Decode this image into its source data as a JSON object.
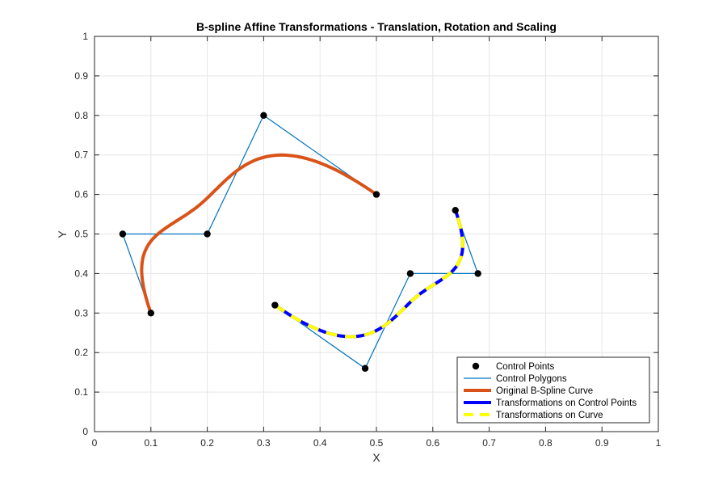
{
  "chart_data": {
    "type": "line",
    "title": "B-spline Affine Transformations - Translation, Rotation and Scaling",
    "xlabel": "X",
    "ylabel": "Y",
    "xlim": [
      0,
      1
    ],
    "ylim": [
      0,
      1
    ],
    "x_ticks": [
      "0",
      "0.1",
      "0.2",
      "0.3",
      "0.4",
      "0.5",
      "0.6",
      "0.7",
      "0.8",
      "0.9",
      "1"
    ],
    "y_ticks": [
      "0",
      "0.1",
      "0.2",
      "0.3",
      "0.4",
      "0.5",
      "0.6",
      "0.7",
      "0.8",
      "0.9",
      "1"
    ],
    "grid": true,
    "legend_position": "bottom-right",
    "legend": [
      {
        "label": "Control Points",
        "style": "marker",
        "color": "#000000"
      },
      {
        "label": "Control Polygons",
        "style": "thin-line",
        "color": "#0072BD"
      },
      {
        "label": "Original B-Spline Curve",
        "style": "thick-line",
        "color": "#D95319"
      },
      {
        "label": "Transformations on Control Points",
        "style": "thick-line",
        "color": "#0000FF"
      },
      {
        "label": "Transformations on Curve",
        "style": "thick-dashed-line",
        "color": "#FFFF00"
      }
    ],
    "series": [
      {
        "name": "Control Points",
        "kind": "points",
        "color": "#000000",
        "points": [
          [
            0.1,
            0.3
          ],
          [
            0.05,
            0.5
          ],
          [
            0.2,
            0.5
          ],
          [
            0.3,
            0.8
          ],
          [
            0.5,
            0.6
          ],
          [
            0.32,
            0.32
          ],
          [
            0.48,
            0.16
          ],
          [
            0.56,
            0.4
          ],
          [
            0.68,
            0.4
          ],
          [
            0.64,
            0.56
          ]
        ]
      },
      {
        "name": "Control Polygons",
        "kind": "polylines",
        "color": "#0072BD",
        "lines": [
          [
            [
              0.1,
              0.3
            ],
            [
              0.05,
              0.5
            ],
            [
              0.2,
              0.5
            ],
            [
              0.3,
              0.8
            ],
            [
              0.5,
              0.6
            ]
          ],
          [
            [
              0.32,
              0.32
            ],
            [
              0.48,
              0.16
            ],
            [
              0.56,
              0.4
            ],
            [
              0.68,
              0.4
            ],
            [
              0.64,
              0.56
            ]
          ]
        ]
      },
      {
        "name": "Original B-Spline Curve",
        "kind": "bspline",
        "color": "#D95319",
        "control": [
          [
            0.1,
            0.3
          ],
          [
            0.05,
            0.5
          ],
          [
            0.2,
            0.5
          ],
          [
            0.3,
            0.8
          ],
          [
            0.5,
            0.6
          ]
        ]
      },
      {
        "name": "Transformations on Control Points",
        "kind": "bspline",
        "color": "#0000FF",
        "control": [
          [
            0.32,
            0.32
          ],
          [
            0.48,
            0.16
          ],
          [
            0.56,
            0.4
          ],
          [
            0.68,
            0.4
          ],
          [
            0.64,
            0.56
          ]
        ]
      },
      {
        "name": "Transformations on Curve",
        "kind": "bspline-dashed",
        "color": "#FFFF00",
        "control": [
          [
            0.32,
            0.32
          ],
          [
            0.48,
            0.16
          ],
          [
            0.56,
            0.4
          ],
          [
            0.68,
            0.4
          ],
          [
            0.64,
            0.56
          ]
        ]
      }
    ]
  }
}
